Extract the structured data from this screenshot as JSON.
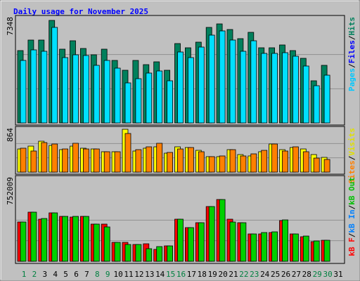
{
  "title": "Daily usage for November 2025",
  "categories": [
    "1",
    "2",
    "3",
    "4",
    "5",
    "6",
    "7",
    "8",
    "9",
    "10",
    "11",
    "12",
    "13",
    "14",
    "15",
    "16",
    "17",
    "18",
    "19",
    "20",
    "21",
    "22",
    "23",
    "24",
    "25",
    "26",
    "27",
    "28",
    "29",
    "30",
    "31"
  ],
  "category_color": "#000000",
  "highlight_color": "#008040",
  "highlighted": [
    0,
    1,
    7,
    8,
    14,
    15,
    21,
    22,
    28,
    29
  ],
  "legend_separator": "/",
  "chart_data": [
    {
      "type": "bar",
      "ylim": [
        0,
        7348
      ],
      "yticks": [
        7348
      ],
      "legend": [
        {
          "name": "Pages",
          "color": "#00c8ff"
        },
        {
          "name": "Files",
          "color": "#0000ff"
        },
        {
          "name": "Hits",
          "color": "#00805c"
        }
      ],
      "series": [
        {
          "color": "#00805c",
          "values": [
            5184,
            5939,
            5939,
            7348,
            5285,
            5888,
            5335,
            4882,
            5285,
            4479,
            3775,
            4479,
            4177,
            4379,
            3775,
            5687,
            5385,
            5788,
            6845,
            7096,
            6694,
            6039,
            6492,
            5385,
            5385,
            5587,
            5184,
            4630,
            3020,
            4127,
            null
          ]
        },
        {
          "color": "#00e0ff",
          "values": [
            4479,
            5234,
            5134,
            6845,
            4681,
            4882,
            4832,
            4127,
            4479,
            3926,
            2869,
            3171,
            3573,
            3724,
            3020,
            5083,
            4681,
            5436,
            6291,
            6593,
            5939,
            5134,
            5888,
            4983,
            4983,
            5033,
            4781,
            4077,
            2667,
            3422,
            null
          ]
        }
      ]
    },
    {
      "type": "bar",
      "ylim": [
        0,
        864
      ],
      "yticks": [
        864
      ],
      "legend": [
        {
          "name": "Sites",
          "color": "#ff8000"
        },
        {
          "name": "Visits",
          "color": "#e0e000"
        }
      ],
      "series": [
        {
          "color": "#ffff00",
          "values": [
            467,
            524,
            623,
            538,
            453,
            524,
            482,
            467,
            411,
            411,
            864,
            425,
            482,
            510,
            382,
            510,
            496,
            439,
            312,
            312,
            453,
            354,
            326,
            411,
            567,
            453,
            496,
            467,
            354,
            297,
            null
          ]
        },
        {
          "color": "#ff8000",
          "values": [
            482,
            425,
            595,
            567,
            467,
            581,
            467,
            467,
            411,
            411,
            779,
            453,
            510,
            581,
            397,
            467,
            496,
            411,
            312,
            326,
            453,
            326,
            368,
            439,
            567,
            425,
            510,
            411,
            283,
            255,
            null
          ]
        }
      ]
    },
    {
      "type": "bar",
      "ylim": [
        0,
        752009
      ],
      "yticks": [
        752009
      ],
      "legend": [
        {
          "name": "kB F",
          "color": "#ff0000"
        },
        {
          "name": "kB In",
          "color": "#0080ff"
        },
        {
          "name": "kB Out",
          "color": "#00c000"
        }
      ],
      "series": [
        {
          "color": "#ff0000",
          "values": [
            478554,
            598193,
            512736,
            589645,
            546919,
            538373,
            546919,
            452918,
            452918,
            230731,
            230731,
            205094,
            213640,
            145275,
            188003,
            512736,
            410189,
            470008,
            666557,
            752009,
            512736,
            470008,
            333278,
            333278,
            350370,
            495645,
            333278,
            299096,
            239277,
            256368,
            null
          ]
        },
        {
          "color": "#00d000",
          "values": [
            478554,
            598193,
            521282,
            589645,
            546919,
            546919,
            546919,
            452918,
            418734,
            230731,
            205094,
            205094,
            153821,
            179458,
            188003,
            512736,
            410189,
            470008,
            666557,
            752009,
            478554,
            470008,
            333278,
            350370,
            358916,
            504190,
            333278,
            307642,
            247822,
            256368,
            null
          ]
        }
      ]
    }
  ]
}
